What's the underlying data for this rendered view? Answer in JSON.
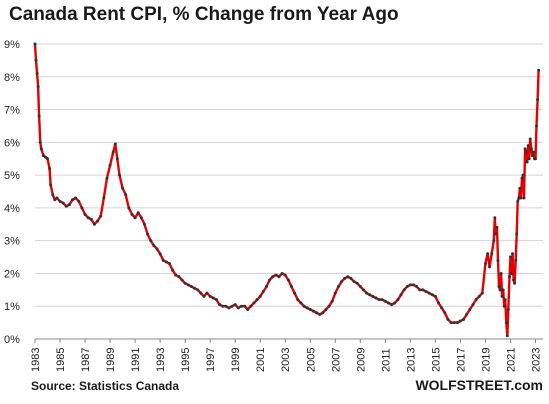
{
  "chart_data": {
    "type": "line",
    "title": "Canada  Rent CPI, % Change from Year Ago",
    "xlabel": "",
    "ylabel": "",
    "source": "Source: Statistics Canada",
    "brand": "WOLFSTREET.com",
    "x_range": [
      1983,
      2023.6
    ],
    "ylim": [
      0,
      9
    ],
    "y_ticks": [
      0,
      1,
      2,
      3,
      4,
      5,
      6,
      7,
      8,
      9
    ],
    "y_tick_labels": [
      "0%",
      "1%",
      "2%",
      "3%",
      "4%",
      "5%",
      "6%",
      "7%",
      "8%",
      "9%"
    ],
    "x_ticks": [
      1983,
      1985,
      1987,
      1989,
      1991,
      1993,
      1995,
      1997,
      1999,
      2001,
      2003,
      2005,
      2007,
      2009,
      2011,
      2013,
      2015,
      2017,
      2019,
      2021,
      2023
    ],
    "x_tick_labels": [
      "1983",
      "1985",
      "1987",
      "1989",
      "1991",
      "1993",
      "1995",
      "1997",
      "1999",
      "2001",
      "2003",
      "2005",
      "2007",
      "2009",
      "2011",
      "2013",
      "2015",
      "2017",
      "2019",
      "2021",
      "2023"
    ],
    "grid": "horizontal",
    "series": [
      {
        "color": "#e60000",
        "marker_color": "#333333",
        "points": [
          [
            1983.0,
            9.0
          ],
          [
            1983.08,
            8.5
          ],
          [
            1983.17,
            8.1
          ],
          [
            1983.25,
            7.7
          ],
          [
            1983.33,
            6.8
          ],
          [
            1983.42,
            6.0
          ],
          [
            1983.5,
            5.8
          ],
          [
            1983.67,
            5.6
          ],
          [
            1983.83,
            5.55
          ],
          [
            1984.0,
            5.5
          ],
          [
            1984.17,
            5.2
          ],
          [
            1984.25,
            4.7
          ],
          [
            1984.42,
            4.4
          ],
          [
            1984.58,
            4.25
          ],
          [
            1984.75,
            4.3
          ],
          [
            1985.0,
            4.2
          ],
          [
            1985.25,
            4.15
          ],
          [
            1985.5,
            4.05
          ],
          [
            1985.75,
            4.1
          ],
          [
            1986.0,
            4.25
          ],
          [
            1986.25,
            4.3
          ],
          [
            1986.5,
            4.2
          ],
          [
            1986.75,
            4.0
          ],
          [
            1987.0,
            3.8
          ],
          [
            1987.25,
            3.7
          ],
          [
            1987.5,
            3.65
          ],
          [
            1987.75,
            3.5
          ],
          [
            1988.0,
            3.6
          ],
          [
            1988.25,
            3.75
          ],
          [
            1988.5,
            4.3
          ],
          [
            1988.75,
            4.9
          ],
          [
            1989.0,
            5.3
          ],
          [
            1989.25,
            5.7
          ],
          [
            1989.42,
            5.95
          ],
          [
            1989.58,
            5.5
          ],
          [
            1989.75,
            5.0
          ],
          [
            1990.0,
            4.6
          ],
          [
            1990.25,
            4.4
          ],
          [
            1990.5,
            4.0
          ],
          [
            1990.75,
            3.8
          ],
          [
            1991.0,
            3.7
          ],
          [
            1991.25,
            3.85
          ],
          [
            1991.5,
            3.7
          ],
          [
            1991.75,
            3.5
          ],
          [
            1992.0,
            3.2
          ],
          [
            1992.25,
            3.0
          ],
          [
            1992.5,
            2.85
          ],
          [
            1992.75,
            2.75
          ],
          [
            1993.0,
            2.6
          ],
          [
            1993.25,
            2.4
          ],
          [
            1993.5,
            2.35
          ],
          [
            1993.75,
            2.3
          ],
          [
            1994.0,
            2.1
          ],
          [
            1994.25,
            1.95
          ],
          [
            1994.5,
            1.9
          ],
          [
            1994.75,
            1.8
          ],
          [
            1995.0,
            1.7
          ],
          [
            1995.25,
            1.65
          ],
          [
            1995.5,
            1.6
          ],
          [
            1995.75,
            1.55
          ],
          [
            1996.0,
            1.5
          ],
          [
            1996.25,
            1.4
          ],
          [
            1996.5,
            1.3
          ],
          [
            1996.75,
            1.4
          ],
          [
            1997.0,
            1.3
          ],
          [
            1997.25,
            1.25
          ],
          [
            1997.5,
            1.2
          ],
          [
            1997.75,
            1.05
          ],
          [
            1998.0,
            1.0
          ],
          [
            1998.25,
            1.0
          ],
          [
            1998.5,
            0.95
          ],
          [
            1998.75,
            1.0
          ],
          [
            1999.0,
            1.05
          ],
          [
            1999.25,
            0.95
          ],
          [
            1999.5,
            1.0
          ],
          [
            1999.75,
            1.0
          ],
          [
            2000.0,
            0.9
          ],
          [
            2000.25,
            1.0
          ],
          [
            2000.5,
            1.1
          ],
          [
            2000.75,
            1.2
          ],
          [
            2001.0,
            1.3
          ],
          [
            2001.25,
            1.45
          ],
          [
            2001.5,
            1.6
          ],
          [
            2001.75,
            1.8
          ],
          [
            2002.0,
            1.9
          ],
          [
            2002.25,
            1.95
          ],
          [
            2002.5,
            1.9
          ],
          [
            2002.75,
            2.0
          ],
          [
            2003.0,
            1.95
          ],
          [
            2003.25,
            1.8
          ],
          [
            2003.5,
            1.6
          ],
          [
            2003.75,
            1.4
          ],
          [
            2004.0,
            1.2
          ],
          [
            2004.25,
            1.1
          ],
          [
            2004.5,
            1.0
          ],
          [
            2004.75,
            0.95
          ],
          [
            2005.0,
            0.9
          ],
          [
            2005.25,
            0.85
          ],
          [
            2005.5,
            0.8
          ],
          [
            2005.75,
            0.75
          ],
          [
            2006.0,
            0.8
          ],
          [
            2006.25,
            0.9
          ],
          [
            2006.5,
            1.0
          ],
          [
            2006.75,
            1.15
          ],
          [
            2007.0,
            1.4
          ],
          [
            2007.25,
            1.6
          ],
          [
            2007.5,
            1.75
          ],
          [
            2007.75,
            1.85
          ],
          [
            2008.0,
            1.9
          ],
          [
            2008.25,
            1.85
          ],
          [
            2008.5,
            1.75
          ],
          [
            2008.75,
            1.7
          ],
          [
            2009.0,
            1.6
          ],
          [
            2009.25,
            1.5
          ],
          [
            2009.5,
            1.4
          ],
          [
            2009.75,
            1.35
          ],
          [
            2010.0,
            1.3
          ],
          [
            2010.25,
            1.25
          ],
          [
            2010.5,
            1.2
          ],
          [
            2010.75,
            1.2
          ],
          [
            2011.0,
            1.15
          ],
          [
            2011.25,
            1.1
          ],
          [
            2011.5,
            1.05
          ],
          [
            2011.75,
            1.1
          ],
          [
            2012.0,
            1.2
          ],
          [
            2012.25,
            1.35
          ],
          [
            2012.5,
            1.5
          ],
          [
            2012.75,
            1.6
          ],
          [
            2013.0,
            1.65
          ],
          [
            2013.25,
            1.65
          ],
          [
            2013.5,
            1.6
          ],
          [
            2013.75,
            1.5
          ],
          [
            2014.0,
            1.5
          ],
          [
            2014.25,
            1.45
          ],
          [
            2014.5,
            1.4
          ],
          [
            2014.75,
            1.35
          ],
          [
            2015.0,
            1.3
          ],
          [
            2015.25,
            1.1
          ],
          [
            2015.5,
            0.95
          ],
          [
            2015.75,
            0.8
          ],
          [
            2016.0,
            0.6
          ],
          [
            2016.25,
            0.5
          ],
          [
            2016.5,
            0.5
          ],
          [
            2016.75,
            0.5
          ],
          [
            2017.0,
            0.55
          ],
          [
            2017.25,
            0.6
          ],
          [
            2017.5,
            0.75
          ],
          [
            2017.75,
            0.9
          ],
          [
            2018.0,
            1.05
          ],
          [
            2018.25,
            1.2
          ],
          [
            2018.5,
            1.3
          ],
          [
            2018.75,
            1.4
          ],
          [
            2019.0,
            2.3
          ],
          [
            2019.17,
            2.6
          ],
          [
            2019.33,
            2.2
          ],
          [
            2019.5,
            2.6
          ],
          [
            2019.67,
            3.0
          ],
          [
            2019.75,
            3.7
          ],
          [
            2019.83,
            3.2
          ],
          [
            2019.92,
            3.4
          ],
          [
            2020.0,
            2.4
          ],
          [
            2020.08,
            1.6
          ],
          [
            2020.17,
            1.5
          ],
          [
            2020.25,
            2.0
          ],
          [
            2020.33,
            1.3
          ],
          [
            2020.42,
            1.5
          ],
          [
            2020.5,
            1.0
          ],
          [
            2020.58,
            1.2
          ],
          [
            2020.67,
            0.5
          ],
          [
            2020.75,
            0.1
          ],
          [
            2020.83,
            0.9
          ],
          [
            2020.92,
            1.9
          ],
          [
            2021.0,
            2.5
          ],
          [
            2021.08,
            2.0
          ],
          [
            2021.17,
            2.6
          ],
          [
            2021.25,
            1.8
          ],
          [
            2021.33,
            1.7
          ],
          [
            2021.42,
            2.4
          ],
          [
            2021.5,
            3.2
          ],
          [
            2021.58,
            4.2
          ],
          [
            2021.67,
            4.3
          ],
          [
            2021.75,
            4.6
          ],
          [
            2021.83,
            4.3
          ],
          [
            2021.92,
            4.9
          ],
          [
            2022.0,
            5.0
          ],
          [
            2022.08,
            4.3
          ],
          [
            2022.17,
            5.8
          ],
          [
            2022.25,
            5.7
          ],
          [
            2022.33,
            5.4
          ],
          [
            2022.42,
            5.9
          ],
          [
            2022.5,
            5.5
          ],
          [
            2022.58,
            6.1
          ],
          [
            2022.67,
            5.8
          ],
          [
            2022.75,
            5.6
          ],
          [
            2022.83,
            5.7
          ],
          [
            2022.92,
            5.5
          ],
          [
            2023.0,
            5.5
          ],
          [
            2023.08,
            6.5
          ],
          [
            2023.17,
            7.3
          ],
          [
            2023.25,
            8.2
          ]
        ]
      }
    ]
  }
}
